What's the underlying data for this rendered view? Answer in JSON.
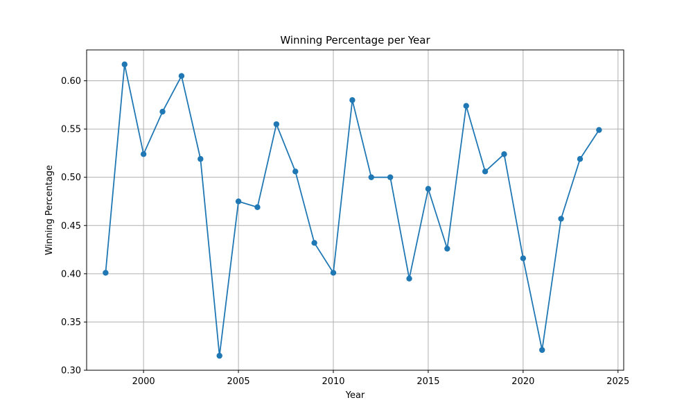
{
  "chart_data": {
    "type": "line",
    "title": "Winning Percentage per Year",
    "xlabel": "Year",
    "ylabel": "Winning Percentage",
    "xlim": [
      1997,
      2025.3
    ],
    "ylim": [
      0.3,
      0.632
    ],
    "xticks": [
      2000,
      2005,
      2010,
      2015,
      2020,
      2025
    ],
    "yticks": [
      0.3,
      0.35,
      0.4,
      0.45,
      0.5,
      0.55,
      0.6
    ],
    "xtick_labels": [
      "2000",
      "2005",
      "2010",
      "2015",
      "2020",
      "2025"
    ],
    "ytick_labels": [
      "0.30",
      "0.35",
      "0.40",
      "0.45",
      "0.50",
      "0.55",
      "0.60"
    ],
    "grid": true,
    "color": "#1f77b4",
    "marker": "circle",
    "series": [
      {
        "x": [
          1998,
          1999,
          2000,
          2001,
          2002,
          2003,
          2004,
          2005,
          2006,
          2007,
          2008,
          2009,
          2010,
          2011,
          2012,
          2013,
          2014,
          2015,
          2016,
          2017,
          2018,
          2019,
          2020,
          2021,
          2022,
          2023,
          2024
        ],
        "y": [
          0.401,
          0.617,
          0.524,
          0.568,
          0.605,
          0.519,
          0.315,
          0.475,
          0.469,
          0.555,
          0.506,
          0.432,
          0.401,
          0.58,
          0.5,
          0.5,
          0.395,
          0.488,
          0.426,
          0.574,
          0.506,
          0.524,
          0.416,
          0.321,
          0.457,
          0.519,
          0.549
        ]
      }
    ]
  }
}
